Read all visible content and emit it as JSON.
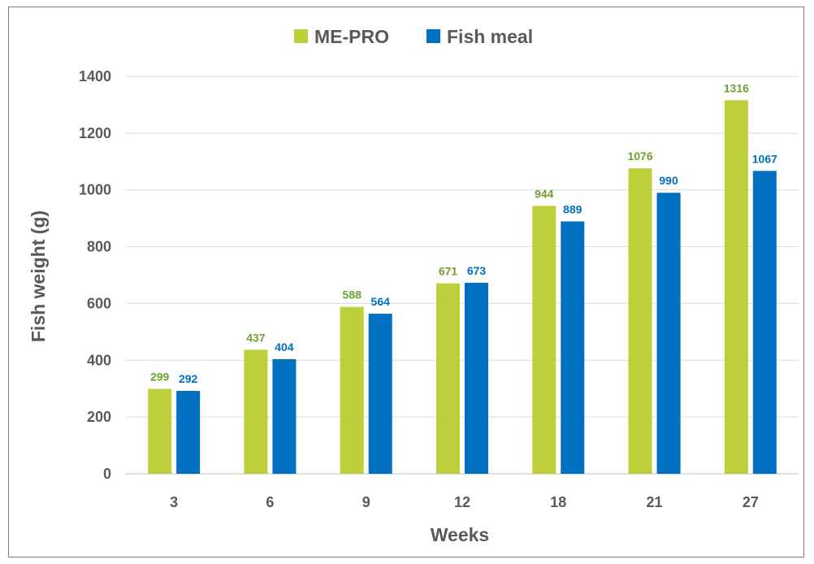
{
  "chart_data": {
    "type": "bar",
    "categories": [
      "3",
      "6",
      "9",
      "12",
      "18",
      "21",
      "27"
    ],
    "series": [
      {
        "name": "ME-PRO",
        "color": "#bdd03b",
        "label_color": "#6aa232",
        "values": [
          299,
          437,
          588,
          671,
          944,
          1076,
          1316
        ]
      },
      {
        "name": "Fish meal",
        "color": "#0070c0",
        "label_color": "#0070c0",
        "values": [
          292,
          404,
          564,
          673,
          889,
          990,
          1067
        ]
      }
    ],
    "xlabel": "Weeks",
    "ylabel": "Fish weight (g)",
    "ylim": [
      0,
      1400
    ],
    "yticks": [
      0,
      200,
      400,
      600,
      800,
      1000,
      1200,
      1400
    ],
    "grid": true,
    "legend_position": "top"
  }
}
